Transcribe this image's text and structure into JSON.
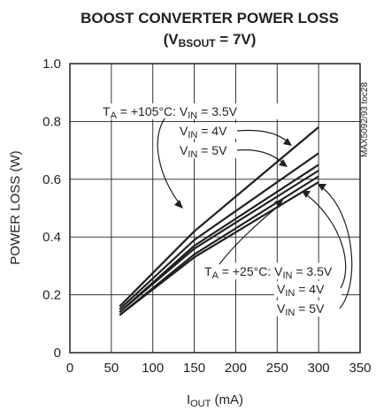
{
  "chart_data": {
    "type": "line",
    "title": "BOOST CONVERTER POWER LOSS",
    "subtitle": {
      "open": "(V",
      "sub": "BSOUT",
      "rest": " = 7V)"
    },
    "side_code": "MAX5092/93 toc28",
    "xlabel": {
      "main": "I",
      "sub": "OUT",
      "rest": " (mA)"
    },
    "ylabel": "POWER LOSS (W)",
    "xlim": [
      0,
      350
    ],
    "ylim": [
      0,
      1.0
    ],
    "xticks": [
      0,
      50,
      100,
      150,
      200,
      250,
      300,
      350
    ],
    "yticks": [
      0,
      0.2,
      0.4,
      0.6,
      0.8,
      1.0
    ],
    "xtick_labels": [
      "0",
      "50",
      "100",
      "150",
      "200",
      "250",
      "300",
      "350"
    ],
    "ytick_labels": [
      "0",
      "0.2",
      "0.4",
      "0.6",
      "0.8",
      "1.0"
    ],
    "grid": true,
    "series": [
      {
        "x": [
          60,
          150,
          300
        ],
        "y": [
          0.16,
          0.42,
          0.78
        ]
      },
      {
        "x": [
          60,
          150,
          300
        ],
        "y": [
          0.15,
          0.39,
          0.69
        ]
      },
      {
        "x": [
          60,
          150,
          300
        ],
        "y": [
          0.14,
          0.37,
          0.65
        ]
      },
      {
        "x": [
          60,
          150,
          300
        ],
        "y": [
          0.14,
          0.36,
          0.63
        ]
      },
      {
        "x": [
          60,
          150,
          300
        ],
        "y": [
          0.13,
          0.34,
          0.61
        ]
      },
      {
        "x": [
          60,
          150,
          300
        ],
        "y": [
          0.13,
          0.33,
          0.59
        ]
      }
    ],
    "annotations": {
      "hot_group": {
        "t_main": "T",
        "t_sub": "A",
        "t_rest": " = +105°C: V",
        "v_sub": "IN",
        "v_rest": " = 3.5V"
      },
      "hot_4v": {
        "main": "V",
        "sub": "IN",
        "rest": " = 4V"
      },
      "hot_5v": {
        "main": "V",
        "sub": "IN",
        "rest": " = 5V"
      },
      "cold_group": {
        "t_main": "T",
        "t_sub": "A",
        "t_rest": " = +25°C: V",
        "v_sub": "IN",
        "v_rest": " = 3.5V"
      },
      "cold_4v": {
        "main": "V",
        "sub": "IN",
        "rest": " = 4V"
      },
      "cold_5v": {
        "main": "V",
        "sub": "IN",
        "rest": " = 5V"
      }
    }
  }
}
